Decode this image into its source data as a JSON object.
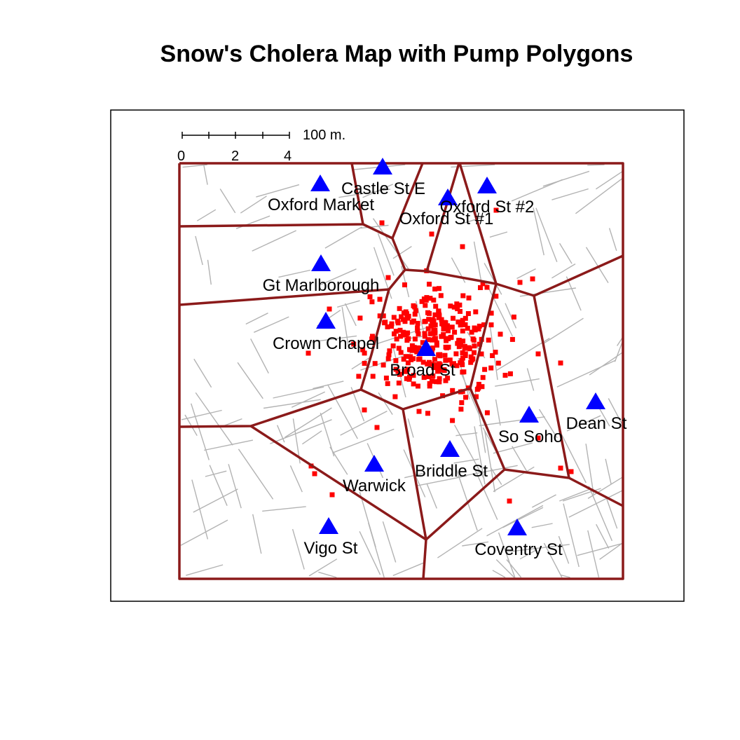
{
  "title": "Snow's Cholera Map with Pump Polygons",
  "scale_bar": {
    "label": "100 m.",
    "ticks": [
      "0",
      "2",
      "4"
    ]
  },
  "colors": {
    "pump": "#0000ff",
    "death": "#ff0000",
    "polygon": "#8b1a1a",
    "street": "#b3b3b3",
    "frame": "#000000"
  },
  "pumps": [
    {
      "name": "Castle St E"
    },
    {
      "name": "Oxford Market"
    },
    {
      "name": "Oxford St #1"
    },
    {
      "name": "Oxford St #2"
    },
    {
      "name": "Gt Marlborough"
    },
    {
      "name": "Crown Chapel"
    },
    {
      "name": "Broad St"
    },
    {
      "name": "Dean St"
    },
    {
      "name": "So Soho"
    },
    {
      "name": "Briddle St"
    },
    {
      "name": "Warwick"
    },
    {
      "name": "Vigo St"
    },
    {
      "name": "Coventry St"
    }
  ],
  "death_count_note": ""
}
